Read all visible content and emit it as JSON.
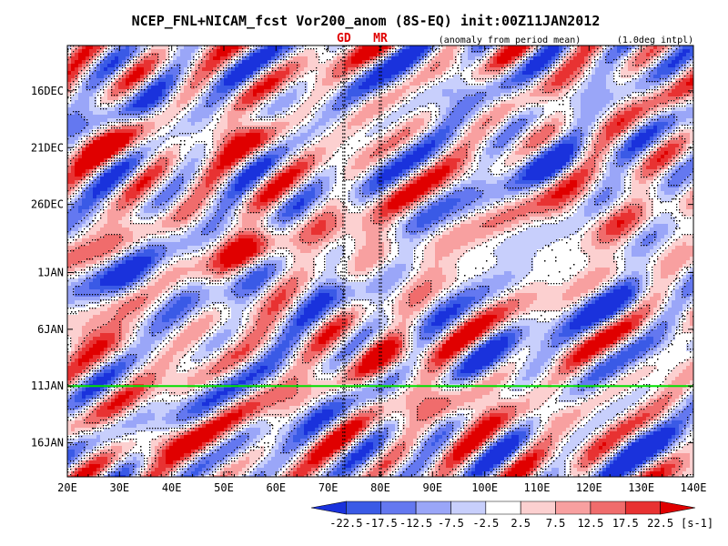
{
  "chart_data": {
    "type": "heatmap",
    "title": "NCEP_FNL+NICAM_fcst Vor200_anom (8S-EQ) init:00Z11JAN2012",
    "subtitle_left": "(anomaly from period mean)",
    "subtitle_right": "(1.0deg intpl)",
    "x_tick_labels": [
      "20E",
      "30E",
      "40E",
      "50E",
      "60E",
      "70E",
      "80E",
      "90E",
      "100E",
      "110E",
      "120E",
      "130E",
      "140E"
    ],
    "x_tick_values": [
      20,
      30,
      40,
      50,
      60,
      70,
      80,
      90,
      100,
      110,
      120,
      130,
      140
    ],
    "xlim": [
      20,
      140
    ],
    "y_tick_labels": [
      "16DEC",
      "21DEC",
      "26DEC",
      "1JAN",
      "6JAN",
      "11JAN",
      "16JAN"
    ],
    "y_tick_values": [
      "2011-12-16",
      "2011-12-21",
      "2011-12-26",
      "2012-01-01",
      "2012-01-06",
      "2012-01-11",
      "2012-01-16"
    ],
    "ylim": [
      "2011-12-12",
      "2012-01-19"
    ],
    "markers": [
      {
        "label": "GD",
        "lon": 73
      },
      {
        "label": "MR",
        "lon": 80
      }
    ],
    "init_line": {
      "date": "2012-01-11",
      "color": "#00e000"
    },
    "colorbar": {
      "levels": [
        "-22.5",
        "-17.5",
        "-12.5",
        "-7.5",
        "-2.5",
        "2.5",
        "7.5",
        "12.5",
        "17.5",
        "22.5"
      ],
      "unit": "[s-1]",
      "colors": [
        "#1a32dc",
        "#3a5ae6",
        "#6478f0",
        "#9aa6f8",
        "#c8cffc",
        "#ffffff",
        "#fcd0d0",
        "#f8a0a0",
        "#f06c6c",
        "#e83232",
        "#e00000"
      ]
    },
    "features": [
      {
        "lon": 52,
        "date": "2011-12-20",
        "value": 22
      },
      {
        "lon": 30,
        "date": "2011-12-21",
        "value": 16
      },
      {
        "lon": 55,
        "date": "2011-12-30",
        "value": 18
      },
      {
        "lon": 75,
        "date": "2011-12-29",
        "value": 13
      },
      {
        "lon": 120,
        "date": "2011-12-27",
        "value": 14
      },
      {
        "lon": 25,
        "date": "2012-01-07",
        "value": 17
      },
      {
        "lon": 80,
        "date": "2012-01-08",
        "value": 19
      },
      {
        "lon": 95,
        "date": "2012-01-13",
        "value": 17
      },
      {
        "lon": 40,
        "date": "2012-01-16",
        "value": 15
      },
      {
        "lon": 115,
        "date": "2012-01-14",
        "value": 12
      },
      {
        "lon": 40,
        "date": "2011-12-18",
        "value": -16
      },
      {
        "lon": 110,
        "date": "2011-12-22",
        "value": -17
      },
      {
        "lon": 90,
        "date": "2011-12-16",
        "value": -14
      },
      {
        "lon": 35,
        "date": "2012-01-02",
        "value": -19
      },
      {
        "lon": 70,
        "date": "2012-01-03",
        "value": -14
      },
      {
        "lon": 125,
        "date": "2012-01-04",
        "value": -15
      },
      {
        "lon": 105,
        "date": "2012-01-09",
        "value": -13
      },
      {
        "lon": 130,
        "date": "2012-01-16",
        "value": -14
      }
    ]
  }
}
